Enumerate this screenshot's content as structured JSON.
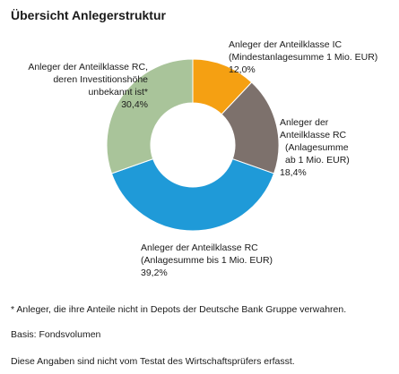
{
  "title": "Übersicht Anlegerstruktur",
  "chart_data": {
    "type": "pie",
    "donut": true,
    "unit": "%",
    "slices": [
      {
        "lines": [
          "Anleger der Anteilklasse IC",
          "(Mindestanlagesumme 1 Mio. EUR)"
        ],
        "value": 12.0,
        "value_label": "12,0%",
        "color": "#f5a012"
      },
      {
        "lines": [
          "Anleger der",
          "Anteilklasse RC",
          "(Anlagesumme",
          "ab 1 Mio. EUR)"
        ],
        "value": 18.4,
        "value_label": "18,4%",
        "color": "#7d716c"
      },
      {
        "lines": [
          "Anleger der Anteilklasse RC",
          "(Anlagesumme bis 1 Mio. EUR)"
        ],
        "value": 39.2,
        "value_label": "39,2%",
        "color": "#1f9ad8"
      },
      {
        "lines": [
          "Anleger der Anteilklasse RC,",
          "deren Investitionshöhe",
          "unbekannt ist*"
        ],
        "value": 30.4,
        "value_label": "30,4%",
        "color": "#a9c49a"
      }
    ]
  },
  "footnotes": {
    "asterisk": "* Anleger, die ihre Anteile nicht in Depots der Deutsche Bank Gruppe verwahren.",
    "basis": "Basis: Fondsvolumen",
    "disclaimer": "Diese Angaben sind nicht vom Testat des Wirtschaftsprüfers erfasst."
  }
}
